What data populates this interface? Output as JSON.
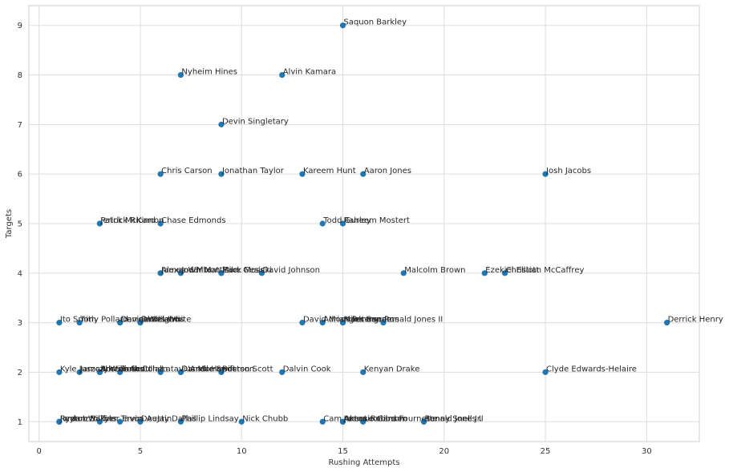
{
  "chart_data": {
    "type": "scatter",
    "title": "",
    "xlabel": "Rushing Attempts",
    "ylabel": "Targets",
    "xlim": [
      -0.5,
      32.6
    ],
    "ylim": [
      0.6,
      9.4
    ],
    "xticks": [
      0,
      5,
      10,
      15,
      20,
      25,
      30
    ],
    "yticks": [
      1,
      2,
      3,
      4,
      5,
      6,
      7,
      8,
      9
    ],
    "grid": true,
    "marker_color": "#1f77b4",
    "points": [
      {
        "label": "Saquon Barkley",
        "x": 15,
        "y": 9
      },
      {
        "label": "Nyheim Hines",
        "x": 7,
        "y": 8
      },
      {
        "label": "Alvin Kamara",
        "x": 12,
        "y": 8
      },
      {
        "label": "Devin Singletary",
        "x": 9,
        "y": 7
      },
      {
        "label": "Chris Carson",
        "x": 6,
        "y": 6
      },
      {
        "label": "Jonathan Taylor",
        "x": 9,
        "y": 6
      },
      {
        "label": "Kareem Hunt",
        "x": 13,
        "y": 6
      },
      {
        "label": "Aaron Jones",
        "x": 16,
        "y": 6
      },
      {
        "label": "Josh Jacobs",
        "x": 25,
        "y": 6
      },
      {
        "label": "Patrick Ricard",
        "x": 3,
        "y": 5
      },
      {
        "label": "Jerick McKinnon",
        "x": 3,
        "y": 5
      },
      {
        "label": "Chase Edmonds",
        "x": 6,
        "y": 5
      },
      {
        "label": "Todd Gurley",
        "x": 14,
        "y": 5
      },
      {
        "label": "Raheem Mostert",
        "x": 15,
        "y": 5
      },
      {
        "label": "Alexander Mattison",
        "x": 6,
        "y": 4
      },
      {
        "label": "James White",
        "x": 6,
        "y": 4
      },
      {
        "label": "Joe Mixon",
        "x": 7,
        "y": 4
      },
      {
        "label": "Zack Moss",
        "x": 9,
        "y": 4
      },
      {
        "label": "Mike Gesicki",
        "x": 9,
        "y": 4
      },
      {
        "label": "David Johnson",
        "x": 11,
        "y": 4
      },
      {
        "label": "Malcolm Brown",
        "x": 18,
        "y": 4
      },
      {
        "label": "Ezekiel Elliott",
        "x": 22,
        "y": 4
      },
      {
        "label": "Christian McCaffrey",
        "x": 23,
        "y": 4
      },
      {
        "label": "Ito Smith",
        "x": 1,
        "y": 3
      },
      {
        "label": "Tony Pollard",
        "x": 2,
        "y": 3
      },
      {
        "label": "Devine Ozigbo",
        "x": 4,
        "y": 3
      },
      {
        "label": "Darrel Williams",
        "x": 4,
        "y": 3
      },
      {
        "label": "James White",
        "x": 5,
        "y": 3
      },
      {
        "label": "Dion Lewis",
        "x": 5,
        "y": 3
      },
      {
        "label": "David Montgomery",
        "x": 13,
        "y": 3
      },
      {
        "label": "Adrian Peterson",
        "x": 14,
        "y": 3
      },
      {
        "label": "Miles Sanders",
        "x": 15,
        "y": 3
      },
      {
        "label": "Mark Ingram",
        "x": 15,
        "y": 3
      },
      {
        "label": "Ronald Jones II",
        "x": 17,
        "y": 3
      },
      {
        "label": "Derrick Henry",
        "x": 31,
        "y": 3
      },
      {
        "label": "Kyle Juszczyk",
        "x": 1,
        "y": 2
      },
      {
        "label": "Jamaal Williams",
        "x": 2,
        "y": 2
      },
      {
        "label": "Boston Scott",
        "x": 3,
        "y": 2
      },
      {
        "label": "Ameer Abdullah",
        "x": 3,
        "y": 2
      },
      {
        "label": "Tarik Cohen",
        "x": 4,
        "y": 2
      },
      {
        "label": "Latavius Murray",
        "x": 6,
        "y": 2
      },
      {
        "label": "Darrell Henderson",
        "x": 7,
        "y": 2
      },
      {
        "label": "D'Andre Swift",
        "x": 7,
        "y": 2
      },
      {
        "label": "Boston Scott",
        "x": 9,
        "y": 2
      },
      {
        "label": "Dalvin Cook",
        "x": 12,
        "y": 2
      },
      {
        "label": "Kenyan Drake",
        "x": 16,
        "y": 2
      },
      {
        "label": "Clyde Edwards-Helaire",
        "x": 25,
        "y": 2
      },
      {
        "label": "Ryan Izzo",
        "x": 1,
        "y": 1
      },
      {
        "label": "Jordan Wilkins",
        "x": 1,
        "y": 1
      },
      {
        "label": "Peyton Barber",
        "x": 1,
        "y": 1
      },
      {
        "label": "Tyler Ervin",
        "x": 3,
        "y": 1
      },
      {
        "label": "Tavon Austin",
        "x": 4,
        "y": 1
      },
      {
        "label": "DeeJay Dallas",
        "x": 5,
        "y": 1
      },
      {
        "label": "Phillip Lindsay",
        "x": 7,
        "y": 1
      },
      {
        "label": "Nick Chubb",
        "x": 10,
        "y": 1
      },
      {
        "label": "Cam Akers",
        "x": 14,
        "y": 1
      },
      {
        "label": "James Robinson",
        "x": 15,
        "y": 1
      },
      {
        "label": "Antonio Gibson",
        "x": 15,
        "y": 1
      },
      {
        "label": "Leonard Fournette",
        "x": 16,
        "y": 1
      },
      {
        "label": "Benny Snell Jr.",
        "x": 19,
        "y": 1
      },
      {
        "label": "Ronald Jones II",
        "x": 19,
        "y": 1
      }
    ]
  }
}
